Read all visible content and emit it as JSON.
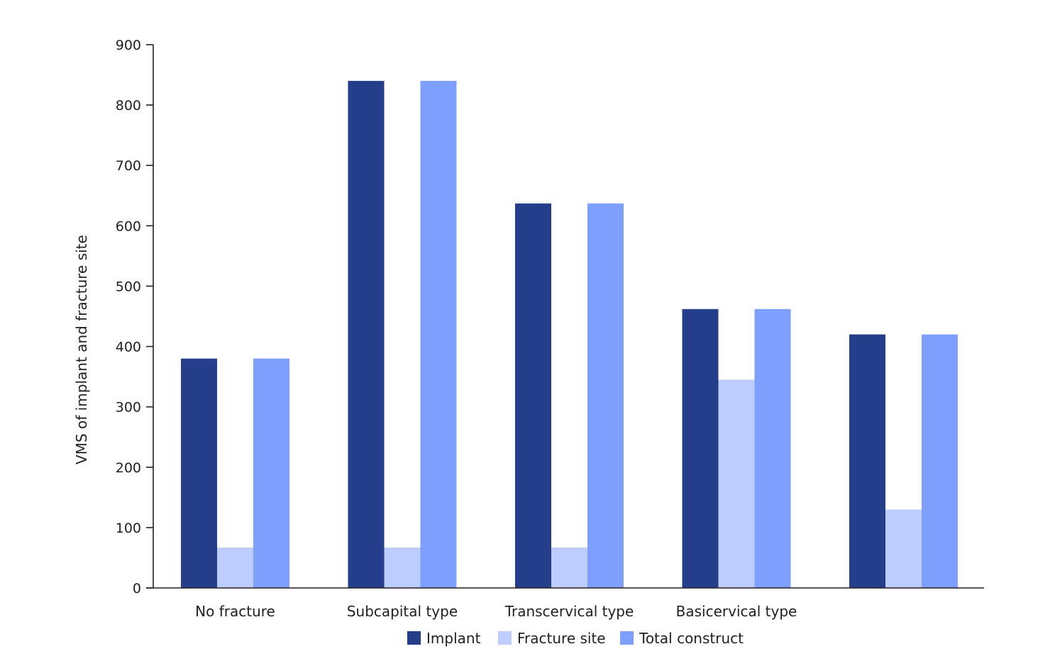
{
  "chart_data": {
    "type": "bar",
    "title": "",
    "xlabel": "",
    "ylabel": "VMS of implant and fracture site",
    "ylim": [
      0,
      900
    ],
    "yticks": [
      0,
      100,
      200,
      300,
      400,
      500,
      600,
      700,
      800,
      900
    ],
    "categories": [
      "No fracture",
      "Subcapital type",
      "Transcervical type",
      "Basicervical type",
      ""
    ],
    "series": [
      {
        "name": "Implant",
        "color": "#243e8c",
        "values": [
          380,
          840,
          637,
          462,
          420
        ]
      },
      {
        "name": "Fracture site",
        "color": "#bdcdff",
        "values": [
          67,
          67,
          67,
          345,
          130
        ]
      },
      {
        "name": "Total construct",
        "color": "#7f9ffe",
        "values": [
          380,
          840,
          637,
          462,
          420
        ]
      }
    ],
    "grid": false,
    "legend_position": "bottom"
  }
}
